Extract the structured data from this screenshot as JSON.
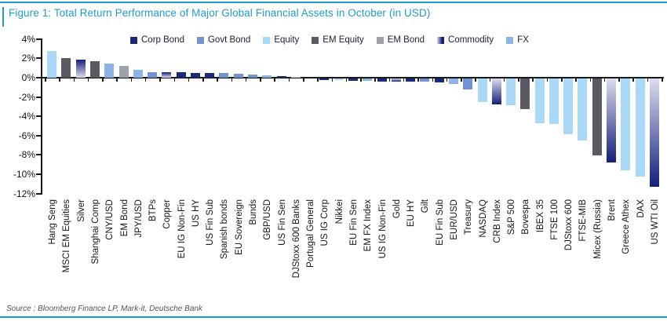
{
  "header": {
    "title": "Figure 1: Total Return Performance of Major Global Financial Assets in October (in USD)",
    "accent_color": "#1E9CD7"
  },
  "footer": {
    "source": "Source : Bloomberg Finance LP, Mark-it, Deutsche Bank"
  },
  "chart_data": {
    "type": "bar",
    "title": "Total Return Performance of Major Global Financial Assets in October (in USD)",
    "xlabel": "",
    "ylabel": "",
    "ylim": [
      -12,
      4
    ],
    "grid": false,
    "legend_position": "top",
    "yticks": [
      4,
      2,
      0,
      -2,
      -4,
      -6,
      -8,
      -10,
      -12
    ],
    "ytick_labels": [
      "4%",
      "2%",
      "0%",
      "-2%",
      "-4%",
      "-6%",
      "-8%",
      "-10%",
      "-12%"
    ],
    "legend": [
      {
        "key": "Corp Bond",
        "label": "Corp Bond"
      },
      {
        "key": "Govt Bond",
        "label": "Govt Bond"
      },
      {
        "key": "Equity",
        "label": "Equity"
      },
      {
        "key": "EM Equity",
        "label": "EM Equity"
      },
      {
        "key": "EM Bond",
        "label": "EM Bond"
      },
      {
        "key": "Commodity",
        "label": "Commodity"
      },
      {
        "key": "FX",
        "label": "FX"
      }
    ],
    "colors": {
      "Corp Bond": "#1A2A78",
      "Govt Bond": "#7292D3",
      "Equity": "#A9D9F6",
      "EM Equity": "#595A64",
      "EM Bond": "#9EA3AB",
      "FX": "#8DB4E6",
      "Commodity": [
        "#141E7A",
        "#DCDDF0"
      ]
    },
    "bars": [
      {
        "label": "Hang Seng",
        "category": "Equity",
        "value": 2.8
      },
      {
        "label": "MSCI EM Equities",
        "category": "EM Equity",
        "value": 2.0
      },
      {
        "label": "Silver",
        "category": "Commodity",
        "value": 1.85
      },
      {
        "label": "Shanghai Comp",
        "category": "EM Equity",
        "value": 1.7
      },
      {
        "label": "CNY/USD",
        "category": "FX",
        "value": 1.5
      },
      {
        "label": "EM Bond",
        "category": "EM Bond",
        "value": 1.2
      },
      {
        "label": "JPY/USD",
        "category": "FX",
        "value": 0.8
      },
      {
        "label": "BTPs",
        "category": "Govt Bond",
        "value": 0.6
      },
      {
        "label": "Copper",
        "category": "Commodity",
        "value": 0.55
      },
      {
        "label": "EU IG Non-Fin",
        "category": "Corp Bond",
        "value": 0.55
      },
      {
        "label": "US HY",
        "category": "Corp Bond",
        "value": 0.5
      },
      {
        "label": "US Fin Sub",
        "category": "Corp Bond",
        "value": 0.5
      },
      {
        "label": "Spanish bonds",
        "category": "Govt Bond",
        "value": 0.45
      },
      {
        "label": "EU Sovereign",
        "category": "Govt Bond",
        "value": 0.4
      },
      {
        "label": "Bunds",
        "category": "Govt Bond",
        "value": 0.35
      },
      {
        "label": "GBP/USD",
        "category": "FX",
        "value": 0.25
      },
      {
        "label": "US Fin Sen",
        "category": "Corp Bond",
        "value": 0.15
      },
      {
        "label": "DJStoxx 600 Banks",
        "category": "Equity",
        "value": 0.05
      },
      {
        "label": "Portugal General",
        "category": "Equity",
        "value": 0.0
      },
      {
        "label": "US IG Corp",
        "category": "Corp Bond",
        "value": -0.2
      },
      {
        "label": "Nikkei",
        "category": "Equity",
        "value": -0.2
      },
      {
        "label": "EU Fin Sen",
        "category": "Corp Bond",
        "value": -0.25
      },
      {
        "label": "EM FX Index",
        "category": "FX",
        "value": -0.25
      },
      {
        "label": "US IG Non-Fin",
        "category": "Corp Bond",
        "value": -0.3
      },
      {
        "label": "Gold",
        "category": "Commodity",
        "value": -0.3
      },
      {
        "label": "EU HY",
        "category": "Corp Bond",
        "value": -0.35
      },
      {
        "label": "Gilt",
        "category": "Govt Bond",
        "value": -0.35
      },
      {
        "label": "EU Fin Sub",
        "category": "Corp Bond",
        "value": -0.4
      },
      {
        "label": "EUR/USD",
        "category": "FX",
        "value": -0.6
      },
      {
        "label": "Treasury",
        "category": "Govt Bond",
        "value": -1.1
      },
      {
        "label": "NASDAQ",
        "category": "Equity",
        "value": -2.4
      },
      {
        "label": "CRB Index",
        "category": "Commodity",
        "value": -2.7
      },
      {
        "label": "S&P 500",
        "category": "Equity",
        "value": -2.75
      },
      {
        "label": "Bovespa",
        "category": "EM Equity",
        "value": -3.2
      },
      {
        "label": "IBEX 35",
        "category": "Equity",
        "value": -4.6
      },
      {
        "label": "FTSE 100",
        "category": "Equity",
        "value": -4.7
      },
      {
        "label": "DJStoxx 600",
        "category": "Equity",
        "value": -5.75
      },
      {
        "label": "FTSE-MIB",
        "category": "Equity",
        "value": -6.4
      },
      {
        "label": "Micex (Russia)",
        "category": "EM Equity",
        "value": -8.0
      },
      {
        "label": "Brent",
        "category": "Commodity",
        "value": -8.7
      },
      {
        "label": "Greece Athex",
        "category": "Equity",
        "value": -9.5
      },
      {
        "label": "DAX",
        "category": "Equity",
        "value": -10.2
      },
      {
        "label": "US WTI Oil",
        "category": "Commodity",
        "value": -11.2
      }
    ]
  }
}
